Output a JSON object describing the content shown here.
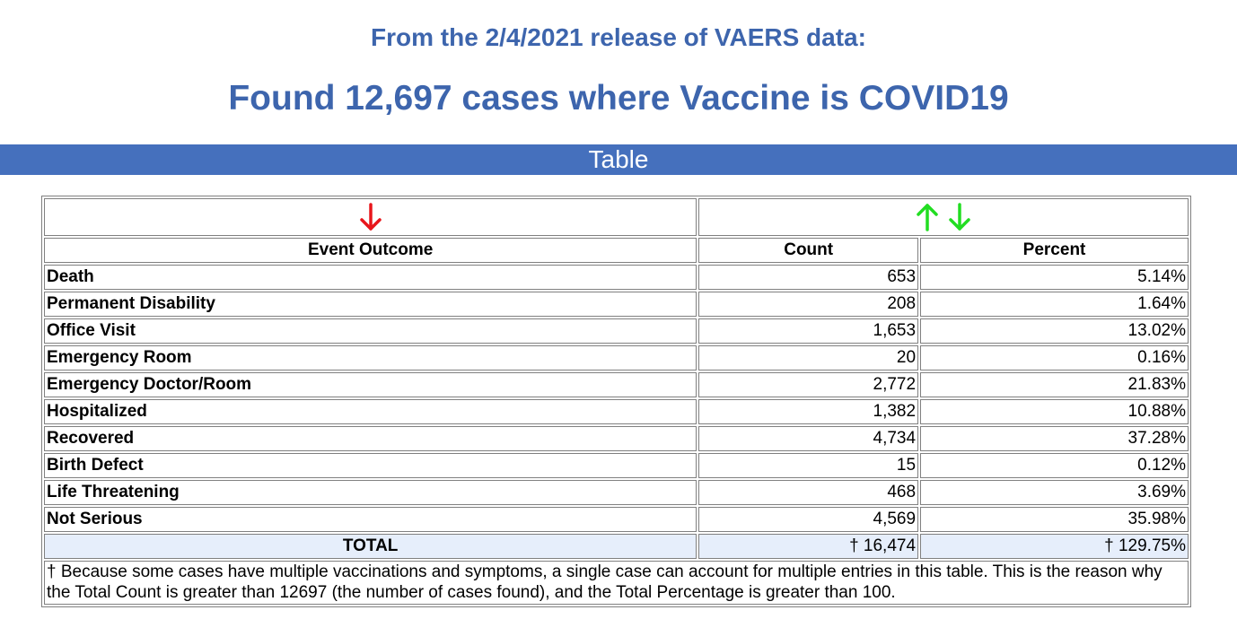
{
  "header": {
    "release_line": "From the 2/4/2021 release of VAERS data:",
    "found_line": "Found 12,697 cases where Vaccine is COVID19"
  },
  "banner": {
    "label": "Table"
  },
  "table": {
    "columns": {
      "outcome": "Event Outcome",
      "count": "Count",
      "percent": "Percent"
    },
    "sort_icons": {
      "outcome": "sort-down-arrow-icon",
      "count": [
        "sort-up-arrow-icon",
        "sort-down-arrow-icon"
      ]
    },
    "colors": {
      "sort_active": "#e8161b",
      "sort_available": "#22dd22",
      "total_row_bg": "#e6eefb",
      "accent": "#3d65ad"
    },
    "rows": [
      {
        "outcome": "Death",
        "count": "653",
        "percent": "5.14%"
      },
      {
        "outcome": "Permanent Disability",
        "count": "208",
        "percent": "1.64%"
      },
      {
        "outcome": "Office Visit",
        "count": "1,653",
        "percent": "13.02%"
      },
      {
        "outcome": "Emergency Room",
        "count": "20",
        "percent": "0.16%"
      },
      {
        "outcome": "Emergency Doctor/Room",
        "count": "2,772",
        "percent": "21.83%"
      },
      {
        "outcome": "Hospitalized",
        "count": "1,382",
        "percent": "10.88%"
      },
      {
        "outcome": "Recovered",
        "count": "4,734",
        "percent": "37.28%"
      },
      {
        "outcome": "Birth Defect",
        "count": "15",
        "percent": "0.12%"
      },
      {
        "outcome": "Life Threatening",
        "count": "468",
        "percent": "3.69%"
      },
      {
        "outcome": "Not Serious",
        "count": "4,569",
        "percent": "35.98%"
      }
    ],
    "total": {
      "label": "TOTAL",
      "count": "† 16,474",
      "percent": "† 129.75%"
    },
    "footnote": "† Because some cases have multiple vaccinations and symptoms, a single case can account for multiple entries in this table. This is the reason why the Total Count is greater than 12697 (the number of cases found), and the Total Percentage is greater than 100."
  }
}
